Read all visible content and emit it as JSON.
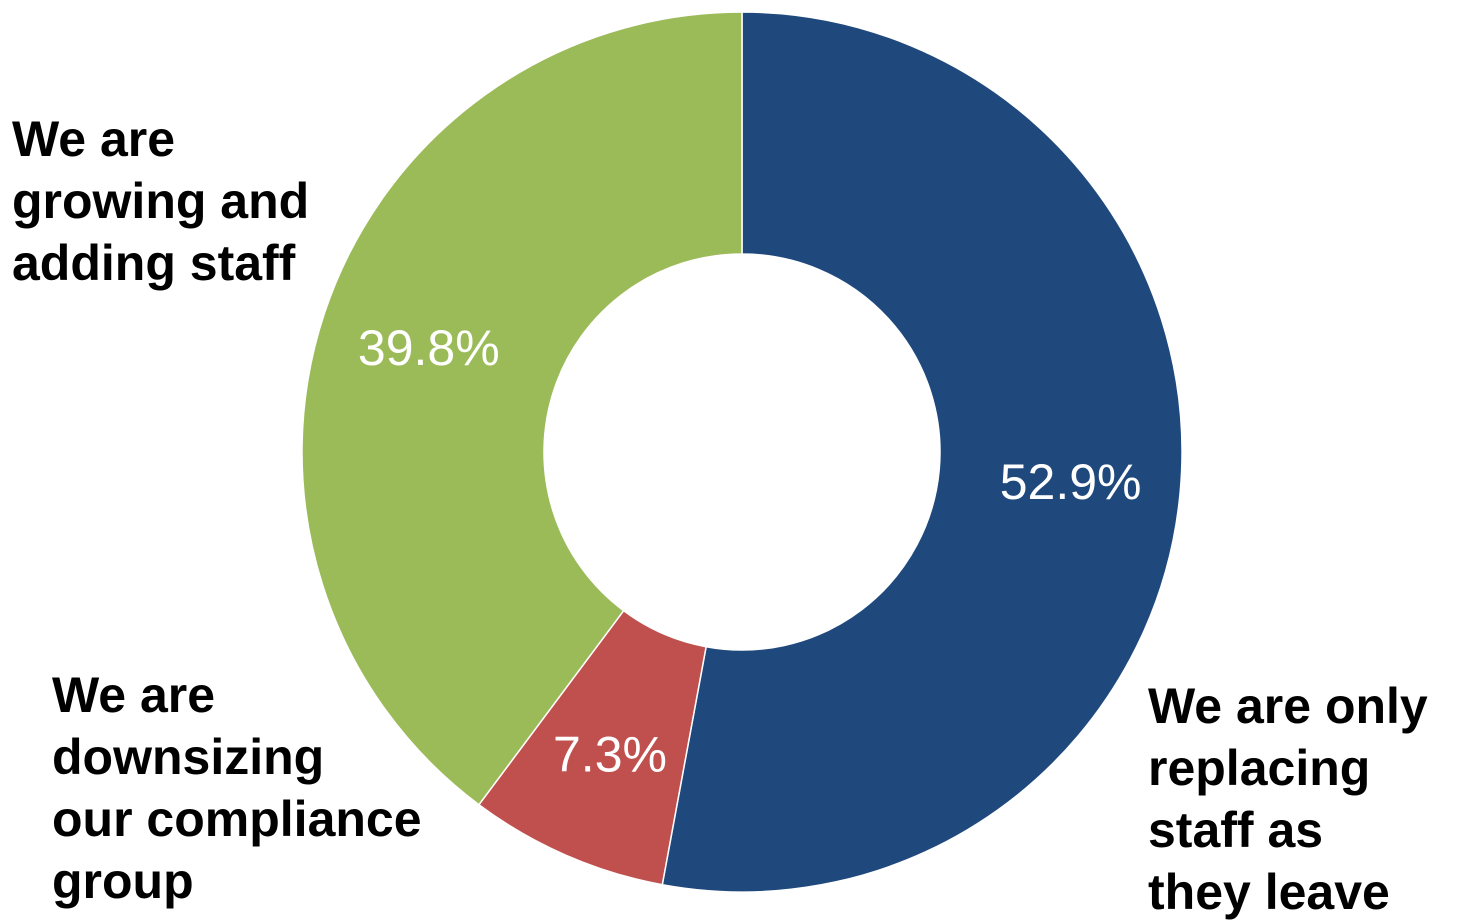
{
  "chart_data": {
    "type": "pie",
    "donut": true,
    "title": "",
    "slices": [
      {
        "label_lines": [
          "We are only",
          "replacing",
          "staff as",
          "they leave"
        ],
        "value": 52.9,
        "value_label": "52.9%",
        "color": "#1f497d"
      },
      {
        "label_lines": [
          "We are",
          "downsizing",
          "our compliance",
          "group"
        ],
        "value": 7.3,
        "value_label": "7.3%",
        "color": "#c0504d"
      },
      {
        "label_lines": [
          "We are",
          "growing and",
          "adding staff"
        ],
        "value": 39.8,
        "value_label": "39.8%",
        "color": "#9bbb59"
      }
    ],
    "start_angle": "12 o'clock",
    "direction": "clockwise",
    "legend": "none",
    "grid": false
  }
}
